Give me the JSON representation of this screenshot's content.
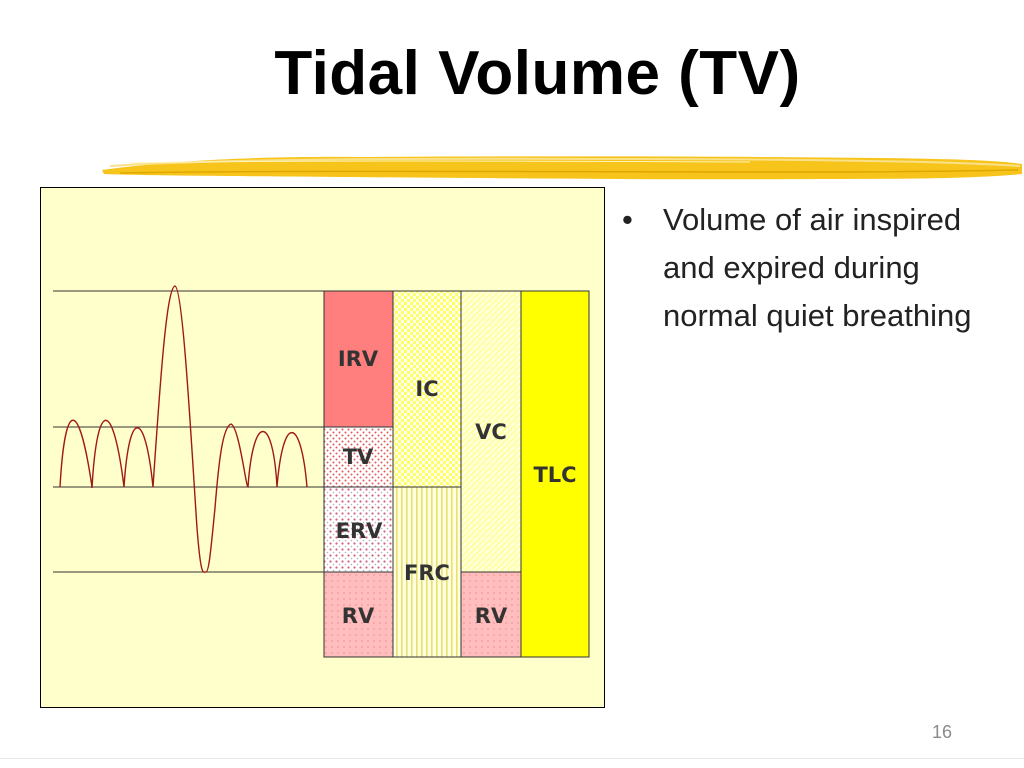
{
  "slide": {
    "title": "Tidal Volume (TV)",
    "bullets": [
      "Volume of air inspired and expired during normal quiet breathing"
    ],
    "page_number": "16"
  },
  "diagram": {
    "labels": {
      "irv": "IRV",
      "ic": "IC",
      "vc": "VC",
      "tv": "TV",
      "tlc": "TLC",
      "erv": "ERV",
      "frc": "FRC",
      "rv_left": "RV",
      "rv_right": "RV"
    },
    "colors": {
      "background": "#ffffcc",
      "irv": "#ff7f7f",
      "tlc": "#ffff00",
      "rv": "#ffbdbd",
      "curve": "#a01818",
      "accent_brush": "#f5c518"
    }
  }
}
